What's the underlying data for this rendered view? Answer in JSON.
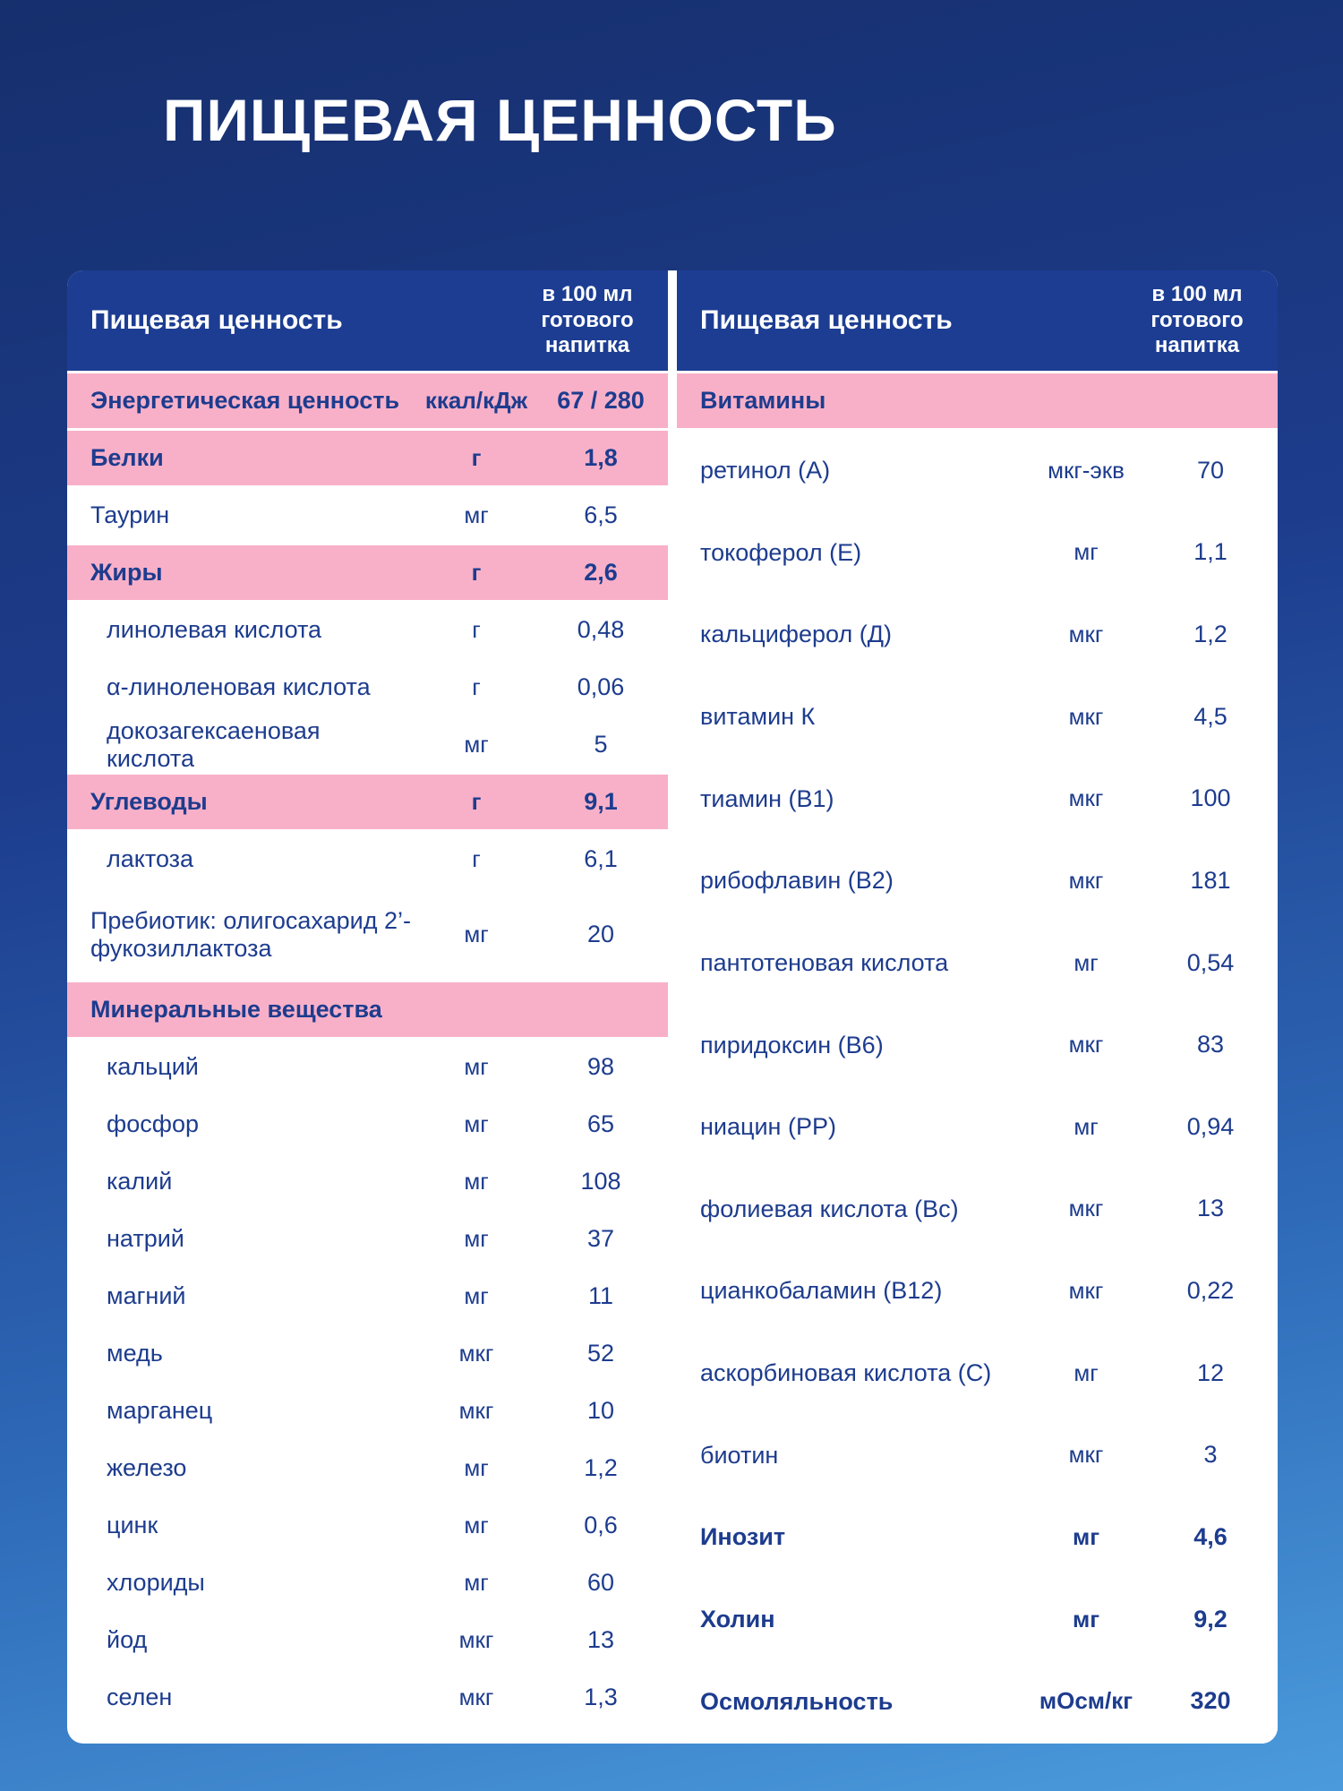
{
  "title": "ПИЩЕВАЯ ЦЕННОСТЬ",
  "colors": {
    "background_top": "#162f6d",
    "background_bottom": "#4b9bdc",
    "header_navy": "#1c3d92",
    "row_pink": "#f8b0c8",
    "text_navy": "#1d3c8e",
    "card_white": "#ffffff"
  },
  "left_table": {
    "header": {
      "name": "Пищевая ценность",
      "per": "в 100 мл готового напитка"
    },
    "rows": [
      {
        "label": "Энергетическая ценность",
        "unit": "ккал/кДж",
        "value": "67 / 280",
        "variant": "pink"
      },
      {
        "label": "Белки",
        "unit": "г",
        "value": "1,8",
        "variant": "pink"
      },
      {
        "label": "Таурин",
        "unit": "мг",
        "value": "6,5",
        "variant": "plain"
      },
      {
        "label": "Жиры",
        "unit": "г",
        "value": "2,6",
        "variant": "pink"
      },
      {
        "label": "линолевая кислота",
        "unit": "г",
        "value": "0,48",
        "variant": "plain",
        "indent": true
      },
      {
        "label": "α-линоленовая кислота",
        "unit": "г",
        "value": "0,06",
        "variant": "plain",
        "indent": true
      },
      {
        "label": "докозагексаеновая кислота",
        "unit": "мг",
        "value": "5",
        "variant": "plain",
        "indent": true
      },
      {
        "label": "Углеводы",
        "unit": "г",
        "value": "9,1",
        "variant": "pink"
      },
      {
        "label": "лактоза",
        "unit": "г",
        "value": "6,1",
        "variant": "plain",
        "indent": true
      },
      {
        "label": "Пребиотик: олигосахарид 2’-фукозиллактоза",
        "unit": "мг",
        "value": "20",
        "variant": "plain",
        "tall": true
      },
      {
        "label": "Минеральные вещества",
        "variant": "section"
      },
      {
        "label": "кальций",
        "unit": "мг",
        "value": "98",
        "variant": "plain",
        "indent": true
      },
      {
        "label": "фосфор",
        "unit": "мг",
        "value": "65",
        "variant": "plain",
        "indent": true
      },
      {
        "label": "калий",
        "unit": "мг",
        "value": "108",
        "variant": "plain",
        "indent": true
      },
      {
        "label": "натрий",
        "unit": "мг",
        "value": "37",
        "variant": "plain",
        "indent": true
      },
      {
        "label": "магний",
        "unit": "мг",
        "value": "11",
        "variant": "plain",
        "indent": true
      },
      {
        "label": "медь",
        "unit": "мкг",
        "value": "52",
        "variant": "plain",
        "indent": true
      },
      {
        "label": "марганец",
        "unit": "мкг",
        "value": "10",
        "variant": "plain",
        "indent": true
      },
      {
        "label": "железо",
        "unit": "мг",
        "value": "1,2",
        "variant": "plain",
        "indent": true
      },
      {
        "label": "цинк",
        "unit": "мг",
        "value": "0,6",
        "variant": "plain",
        "indent": true
      },
      {
        "label": "хлориды",
        "unit": "мг",
        "value": "60",
        "variant": "plain",
        "indent": true
      },
      {
        "label": "йод",
        "unit": "мкг",
        "value": "13",
        "variant": "plain",
        "indent": true
      },
      {
        "label": "селен",
        "unit": "мкг",
        "value": "1,3",
        "variant": "plain",
        "indent": true
      }
    ]
  },
  "right_table": {
    "header": {
      "name": "Пищевая ценность",
      "per": "в 100 мл готового напитка"
    },
    "rows": [
      {
        "label": "Витамины",
        "variant": "section"
      },
      {
        "label": "ретинол (А)",
        "unit": "мкг-экв",
        "value": "70",
        "variant": "plain"
      },
      {
        "label": "токоферол (Е)",
        "unit": "мг",
        "value": "1,1",
        "variant": "plain"
      },
      {
        "label": "кальциферол (Д)",
        "unit": "мкг",
        "value": "1,2",
        "variant": "plain"
      },
      {
        "label": "витамин К",
        "unit": "мкг",
        "value": "4,5",
        "variant": "plain"
      },
      {
        "label": "тиамин (В1)",
        "unit": "мкг",
        "value": "100",
        "variant": "plain"
      },
      {
        "label": "рибофлавин (В2)",
        "unit": "мкг",
        "value": "181",
        "variant": "plain"
      },
      {
        "label": "пантотеновая кислота",
        "unit": "мг",
        "value": "0,54",
        "variant": "plain"
      },
      {
        "label": "пиридоксин (В6)",
        "unit": "мкг",
        "value": "83",
        "variant": "plain"
      },
      {
        "label": "ниацин (РР)",
        "unit": "мг",
        "value": "0,94",
        "variant": "plain"
      },
      {
        "label": "фолиевая кислота (Вс)",
        "unit": "мкг",
        "value": "13",
        "variant": "plain"
      },
      {
        "label": "цианкобаламин (В12)",
        "unit": "мкг",
        "value": "0,22",
        "variant": "plain"
      },
      {
        "label": "аскорбиновая кислота (С)",
        "unit": "мг",
        "value": "12",
        "variant": "plain"
      },
      {
        "label": "биотин",
        "unit": "мкг",
        "value": "3",
        "variant": "plain"
      },
      {
        "label": "Инозит",
        "unit": "мг",
        "value": "4,6",
        "variant": "bold"
      },
      {
        "label": "Холин",
        "unit": "мг",
        "value": "9,2",
        "variant": "bold"
      },
      {
        "label": "Осмоляльность",
        "unit": "мОсм/кг",
        "value": "320",
        "variant": "bold"
      }
    ]
  }
}
